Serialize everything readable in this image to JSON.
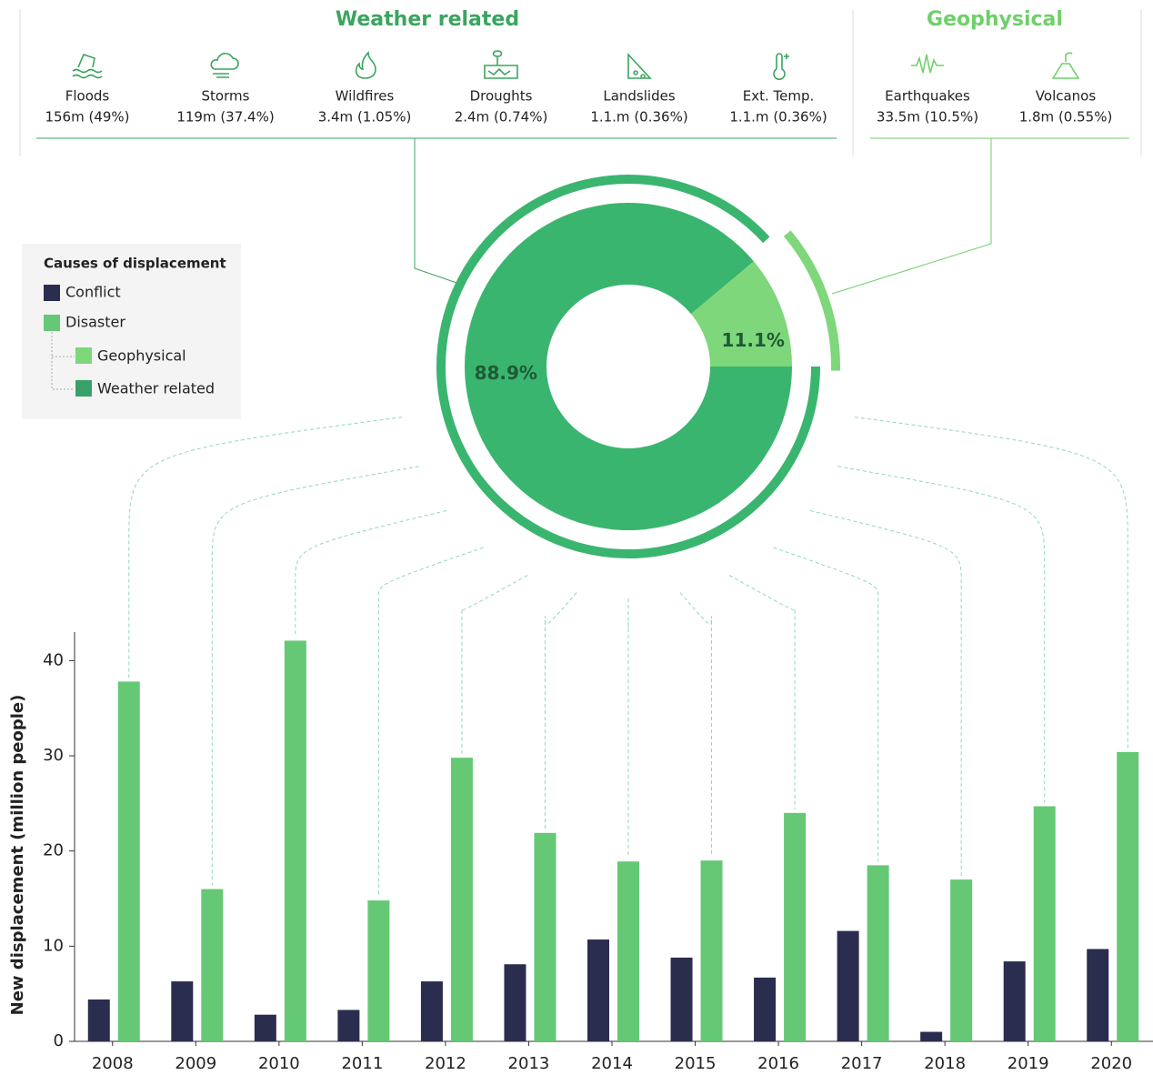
{
  "header": {
    "groups": [
      {
        "items": [
          {
            "label": "Floods",
            "value": "156m (49%)"
          },
          {
            "label": "Storms",
            "value": "119m (37.4%)"
          },
          {
            "label": "Wildfires",
            "value": "3.4m (1.05%)"
          },
          {
            "label": "Droughts",
            "value": "2.4m (0.74%)"
          },
          {
            "label": "Landslides",
            "value": "1.1.m (0.36%)"
          },
          {
            "label": "Ext. Temp.",
            "value": "1.1.m (0.36%)"
          }
        ]
      },
      {
        "items": [
          {
            "label": "Earthquakes",
            "value": "33.5m (10.5%)"
          },
          {
            "label": "Volcanos",
            "value": "1.8m (0.55%)"
          }
        ]
      }
    ]
  },
  "chart_data": [
    {
      "type": "pie",
      "categories": [
        "Weather related",
        "Geophysical"
      ],
      "values": [
        88.9,
        11.1
      ],
      "value_labels": [
        "88.9%",
        "11.1%"
      ],
      "colors": [
        "#3ab56f",
        "#7ed77a"
      ]
    },
    {
      "type": "bar",
      "legend_title": "Causes of displacement",
      "ylabel": "New displacement (million people)",
      "categories": [
        "2008",
        "2009",
        "2010",
        "2011",
        "2012",
        "2013",
        "2014",
        "2015",
        "2016",
        "2017",
        "2018",
        "2019",
        "2020"
      ],
      "series": [
        {
          "name": "Conflict",
          "color": "#2b2d4f",
          "values": [
            4.4,
            6.3,
            2.8,
            3.3,
            6.3,
            8.1,
            10.7,
            8.8,
            6.7,
            11.6,
            1.0,
            8.4,
            9.7
          ]
        },
        {
          "name": "Disaster",
          "color": "#65c875",
          "values": [
            37.8,
            16.0,
            42.1,
            14.8,
            29.8,
            21.9,
            18.9,
            19.0,
            24.0,
            18.5,
            17.0,
            24.7,
            30.4
          ]
        }
      ],
      "ylim": [
        0,
        43
      ],
      "yticks": [
        0,
        10,
        20,
        30,
        40
      ]
    }
  ]
}
